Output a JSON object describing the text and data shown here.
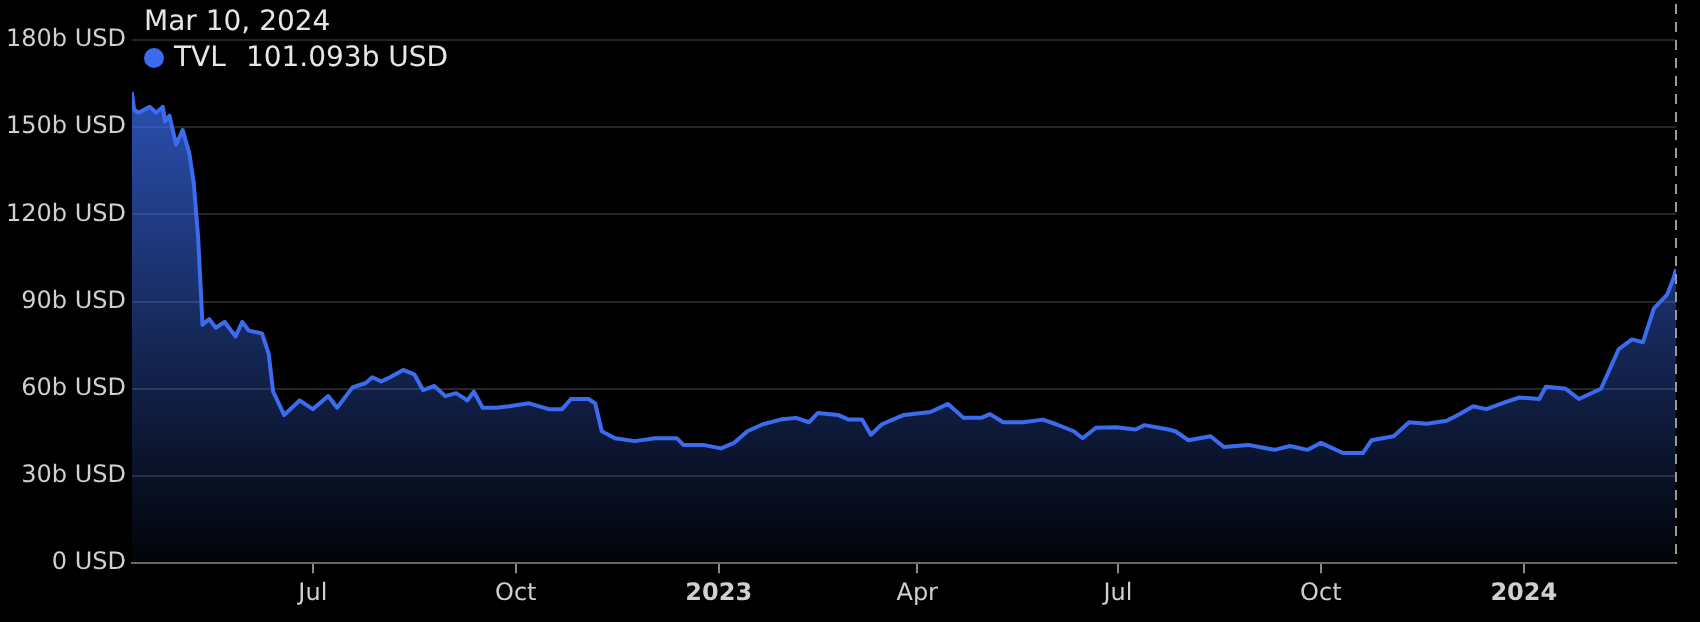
{
  "chart_data": {
    "type": "area",
    "annotations": [
      "Mar 10, 2024",
      "101.093b USD"
    ],
    "x": [
      "2022-04-10",
      "2022-04-11",
      "2022-04-13",
      "2022-04-18",
      "2022-04-21",
      "2022-04-24",
      "2022-04-25",
      "2022-04-27",
      "2022-04-30",
      "2022-05-03",
      "2022-05-06",
      "2022-05-08",
      "2022-05-10",
      "2022-05-12",
      "2022-05-15",
      "2022-05-18",
      "2022-05-22",
      "2022-05-27",
      "2022-05-30",
      "2022-06-02",
      "2022-06-08",
      "2022-06-11",
      "2022-06-13",
      "2022-06-18",
      "2022-06-25",
      "2022-07-01",
      "2022-07-08",
      "2022-07-12",
      "2022-07-19",
      "2022-07-25",
      "2022-07-28",
      "2022-08-01",
      "2022-08-05",
      "2022-08-11",
      "2022-08-16",
      "2022-08-20",
      "2022-08-25",
      "2022-08-30",
      "2022-09-04",
      "2022-09-09",
      "2022-09-12",
      "2022-09-16",
      "2022-09-22",
      "2022-09-28",
      "2022-10-07",
      "2022-10-16",
      "2022-10-22",
      "2022-10-26",
      "2022-11-03",
      "2022-11-06",
      "2022-11-09",
      "2022-11-15",
      "2022-11-24",
      "2022-12-03",
      "2022-12-13",
      "2022-12-16",
      "2022-12-25",
      "2023-01-02",
      "2023-01-08",
      "2023-01-14",
      "2023-01-21",
      "2023-01-29",
      "2023-02-05",
      "2023-02-11",
      "2023-02-15",
      "2023-02-24",
      "2023-03-01",
      "2023-03-07",
      "2023-03-11",
      "2023-03-16",
      "2023-03-26",
      "2023-04-07",
      "2023-04-15",
      "2023-04-22",
      "2023-04-30",
      "2023-05-04",
      "2023-05-10",
      "2023-05-19",
      "2023-05-28",
      "2023-06-03",
      "2023-06-11",
      "2023-06-15",
      "2023-06-21",
      "2023-06-30",
      "2023-07-09",
      "2023-07-13",
      "2023-07-24",
      "2023-07-27",
      "2023-08-02",
      "2023-08-12",
      "2023-08-18",
      "2023-08-29",
      "2023-09-10",
      "2023-09-17",
      "2023-09-25",
      "2023-10-01",
      "2023-10-11",
      "2023-10-20",
      "2023-10-24",
      "2023-11-03",
      "2023-11-10",
      "2023-11-18",
      "2023-11-27",
      "2023-12-03",
      "2023-12-09",
      "2023-12-15",
      "2023-12-24",
      "2023-12-30",
      "2024-01-08",
      "2024-01-11",
      "2024-01-20",
      "2024-01-26",
      "2024-02-05",
      "2024-02-13",
      "2024-02-19",
      "2024-02-24",
      "2024-02-29",
      "2024-03-06",
      "2024-03-09",
      "2024-03-10"
    ],
    "series": [
      {
        "name": "TVL",
        "color": "#3b6cf0",
        "values": [
          162,
          156,
          155,
          157,
          155,
          157,
          152,
          154,
          144,
          149,
          141,
          131,
          112,
          82,
          84,
          81,
          83,
          78,
          83,
          80,
          79,
          72,
          59,
          51,
          56,
          53,
          57.5,
          53.5,
          60.5,
          62,
          64,
          62.5,
          64,
          66.5,
          65,
          59.5,
          61,
          57.5,
          58.5,
          56,
          59,
          53.5,
          53.5,
          54,
          55,
          53,
          53,
          56.5,
          56.5,
          55,
          45.4,
          43,
          42,
          43,
          43,
          40.7,
          40.7,
          39.5,
          41.4,
          45.4,
          47.8,
          49.4,
          50,
          48.5,
          51.7,
          51,
          49.4,
          49.4,
          44.2,
          47.8,
          51,
          52,
          54.8,
          50,
          50,
          51.3,
          48.5,
          48.5,
          49.4,
          47.8,
          45.4,
          43,
          46.6,
          46.8,
          46,
          47.5,
          46,
          45.4,
          42.3,
          43.7,
          40,
          40.7,
          39,
          40.3,
          39,
          41.4,
          37.9,
          37.9,
          42.3,
          43.7,
          48.5,
          48,
          49,
          51.3,
          54,
          53,
          55.5,
          57,
          56.5,
          60.7,
          60,
          56.5,
          60,
          73.6,
          77,
          76,
          87.7,
          92.4,
          98.3,
          101.093
        ]
      }
    ],
    "xlim": [
      "2022-04-10",
      "2024-03-10"
    ],
    "xticks": [
      {
        "value": "2022-07-01",
        "label": "Jul"
      },
      {
        "value": "2022-10-01",
        "label": "Oct"
      },
      {
        "value": "2023-01-01",
        "label": "2023"
      },
      {
        "value": "2023-04-01",
        "label": "Apr"
      },
      {
        "value": "2023-07-01",
        "label": "Jul"
      },
      {
        "value": "2023-10-01",
        "label": "Oct"
      },
      {
        "value": "2024-01-01",
        "label": "2024"
      }
    ],
    "ylim": [
      0,
      180
    ],
    "yticks": [
      {
        "value": 0,
        "label": "0 USD"
      },
      {
        "value": 30,
        "label": "30b USD"
      },
      {
        "value": 60,
        "label": "60b USD"
      },
      {
        "value": 90,
        "label": "90b USD"
      },
      {
        "value": 120,
        "label": "120b USD"
      },
      {
        "value": 150,
        "label": "150b USD"
      },
      {
        "value": 180,
        "label": "180b USD"
      }
    ],
    "ref_lines": [
      {
        "axis": "x",
        "value": "2024-03-10",
        "color": "#999999",
        "line_style": "dashed"
      }
    ],
    "grid": "y",
    "legend": "top left",
    "marker": "none",
    "line_style": "solid"
  }
}
